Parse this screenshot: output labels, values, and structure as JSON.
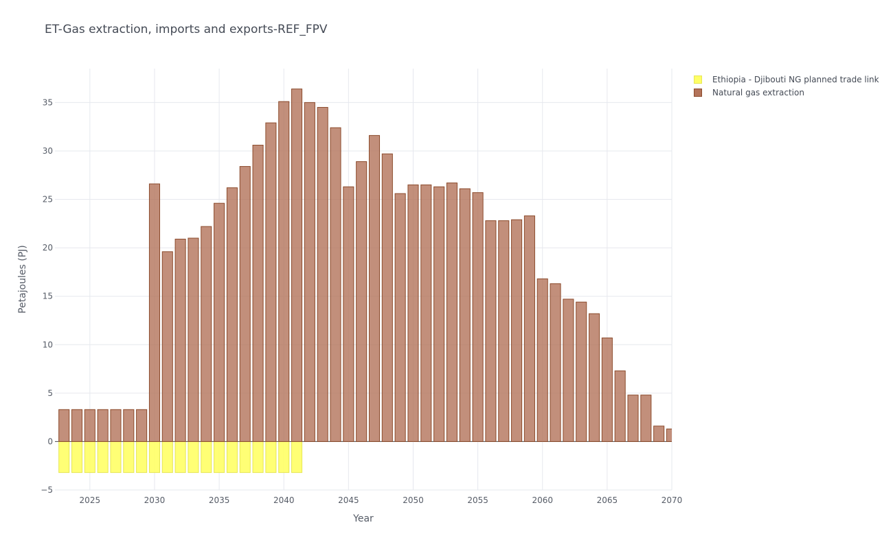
{
  "chart_data": {
    "type": "bar",
    "title": "ET-Gas extraction, imports and exports-REF_FPV",
    "xlabel": "Year",
    "ylabel": "Petajoules (PJ)",
    "xlim": [
      2022.3,
      2070
    ],
    "ylim": [
      -5,
      38.5
    ],
    "x_ticks": [
      2025,
      2030,
      2035,
      2040,
      2045,
      2050,
      2055,
      2060,
      2065,
      2070
    ],
    "y_ticks": [
      -5,
      0,
      5,
      10,
      15,
      20,
      25,
      30,
      35
    ],
    "grid": true,
    "barmode": "relative",
    "legend_position": "top-right",
    "x": [
      2023,
      2024,
      2025,
      2026,
      2027,
      2028,
      2029,
      2030,
      2031,
      2032,
      2033,
      2034,
      2035,
      2036,
      2037,
      2038,
      2039,
      2040,
      2041,
      2042,
      2043,
      2044,
      2045,
      2046,
      2047,
      2048,
      2049,
      2050,
      2051,
      2052,
      2053,
      2054,
      2055,
      2056,
      2057,
      2058,
      2059,
      2060,
      2061,
      2062,
      2063,
      2064,
      2065,
      2066,
      2067,
      2068,
      2069,
      2070
    ],
    "series": [
      {
        "name": "Ethiopia - Djibouti NG planned trade link",
        "color": "#ffff66",
        "stroke": "#e6e655",
        "values": [
          -3.2,
          -3.2,
          -3.2,
          -3.2,
          -3.2,
          -3.2,
          -3.2,
          -3.2,
          -3.2,
          -3.2,
          -3.2,
          -3.2,
          -3.2,
          -3.2,
          -3.2,
          -3.2,
          -3.2,
          -3.2,
          -3.2,
          0,
          0,
          0,
          0,
          0,
          0,
          0,
          0,
          0,
          0,
          0,
          0,
          0,
          0,
          0,
          0,
          0,
          0,
          0,
          0,
          0,
          0,
          0,
          0,
          0,
          0,
          0,
          0,
          0
        ]
      },
      {
        "name": "Natural gas extraction",
        "color": "#b3735a",
        "stroke": "#8b4a2b",
        "values": [
          3.3,
          3.3,
          3.3,
          3.3,
          3.3,
          3.3,
          3.3,
          26.6,
          19.6,
          20.9,
          21.0,
          22.2,
          24.6,
          26.2,
          28.4,
          30.6,
          32.9,
          35.1,
          36.4,
          35.0,
          34.5,
          32.4,
          26.3,
          28.9,
          31.6,
          29.7,
          25.6,
          26.5,
          26.5,
          26.3,
          26.7,
          26.1,
          25.7,
          22.8,
          22.8,
          22.9,
          23.3,
          16.8,
          16.3,
          14.7,
          14.4,
          13.2,
          10.7,
          7.3,
          4.8,
          4.8,
          1.6,
          1.3
        ]
      }
    ]
  }
}
